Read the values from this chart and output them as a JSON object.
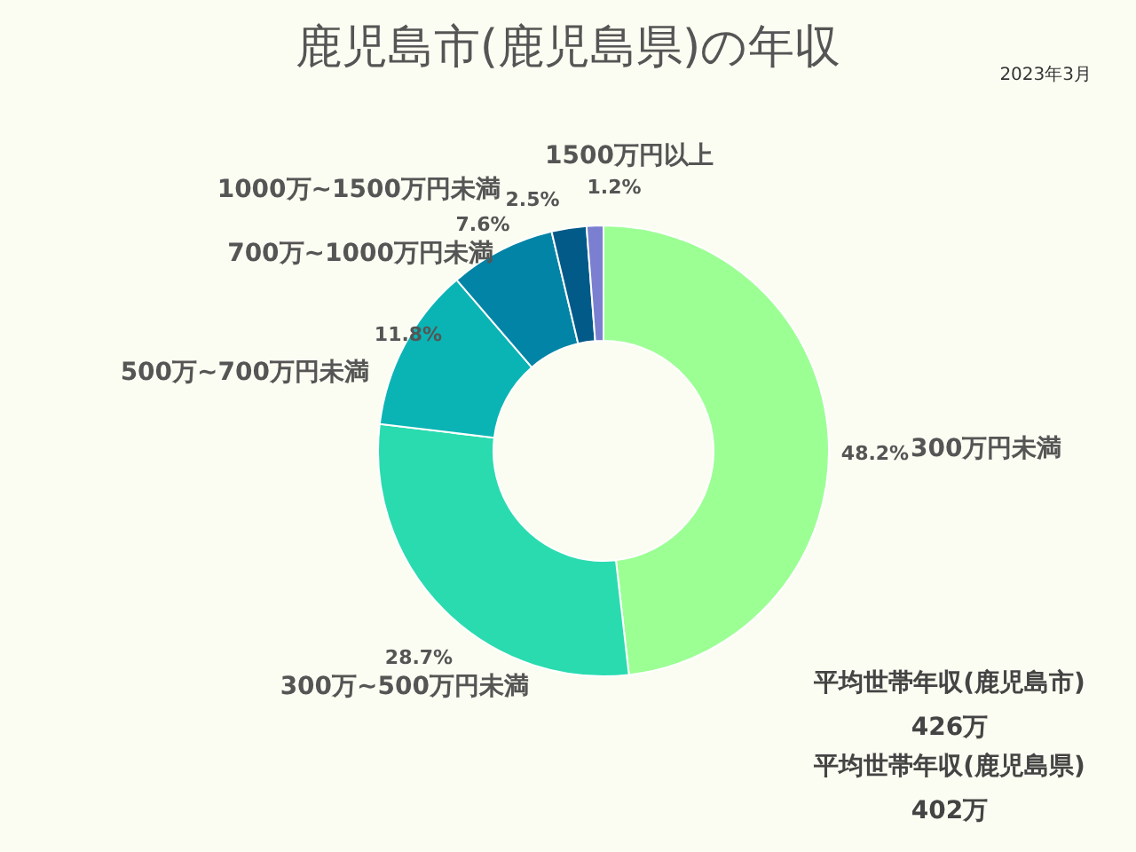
{
  "chart_data": {
    "type": "donut",
    "title": "鹿児島市(鹿児島県)の年収",
    "categories": [
      "300万円未満",
      "300万~500万円未満",
      "500万~700万円未満",
      "700万~1000万円未満",
      "1000万~1500万円未満",
      "1500万円以上"
    ],
    "values": [
      48.2,
      28.7,
      11.8,
      7.6,
      2.5,
      1.2
    ],
    "colors": [
      "#9cff94",
      "#2adbaf",
      "#0bb4b4",
      "#0284a6",
      "#025a88",
      "#7a7fcf"
    ],
    "value_labels": [
      "48.2%",
      "28.7%",
      "11.8%",
      "7.6%",
      "2.5%",
      "1.2%"
    ],
    "legend": false,
    "annotations": [
      "2023年3月",
      "平均世帯年収(鹿児島市)",
      "426万",
      "平均世帯年収(鹿児島県)",
      "402万"
    ]
  }
}
